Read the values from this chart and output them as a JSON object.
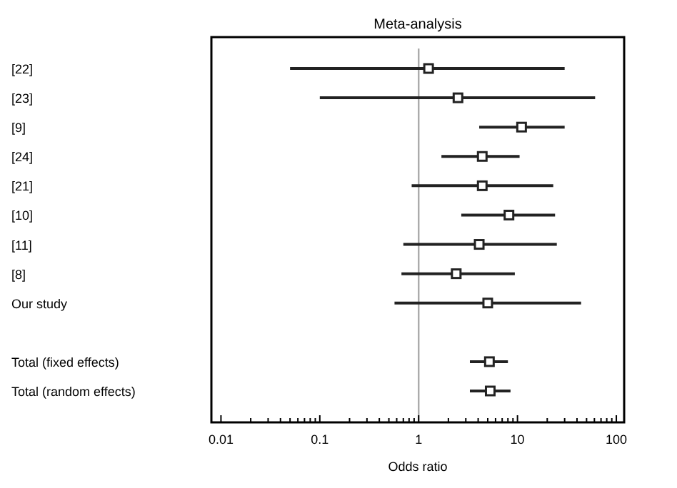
{
  "chart_data": {
    "type": "scatter",
    "title": "Meta-analysis",
    "xlabel": "Odds ratio",
    "log": "x",
    "marker": "square",
    "grid": false,
    "categories": [
      "[22]",
      "[23]",
      "[9]",
      "[24]",
      "[21]",
      "[10]",
      "[11]",
      "[8]",
      "Our study",
      null,
      "Total (fixed effects)",
      "Total (random effects)"
    ],
    "orientation": "horizontal",
    "values": [
      1.26,
      2.5,
      11,
      4.4,
      4.4,
      8.2,
      4.1,
      2.4,
      5,
      null,
      5.2,
      5.3
    ],
    "errors": [
      [
        0.05,
        30
      ],
      [
        0.1,
        61
      ],
      [
        4.1,
        30
      ],
      [
        1.7,
        10.5
      ],
      [
        0.85,
        23
      ],
      [
        2.7,
        24
      ],
      [
        0.7,
        25
      ],
      [
        0.67,
        9.4
      ],
      [
        0.57,
        44
      ],
      null,
      [
        3.3,
        8
      ],
      [
        3.3,
        8.5
      ]
    ],
    "color": "#222222",
    "xlim": [
      0.008,
      120
    ],
    "xticks": [
      0.01,
      {
        "value": 0.02,
        "label": null
      },
      {
        "value": 0.03,
        "label": null
      },
      {
        "value": 0.04,
        "label": null
      },
      {
        "value": 0.05,
        "label": null
      },
      {
        "value": 0.06,
        "label": null
      },
      {
        "value": 0.07,
        "label": null
      },
      {
        "value": 0.08,
        "label": null
      },
      {
        "value": 0.09,
        "label": null
      },
      0.1,
      {
        "value": 0.2,
        "label": null
      },
      {
        "value": 0.3,
        "label": null
      },
      {
        "value": 0.4,
        "label": null
      },
      {
        "value": 0.5,
        "label": null
      },
      {
        "value": 0.6,
        "label": null
      },
      {
        "value": 0.7,
        "label": null
      },
      {
        "value": 0.8,
        "label": null
      },
      {
        "value": 0.9,
        "label": null
      },
      1,
      {
        "value": 2,
        "label": null
      },
      {
        "value": 3,
        "label": null
      },
      {
        "value": 4,
        "label": null
      },
      {
        "value": 5,
        "label": null
      },
      {
        "value": 6,
        "label": null
      },
      {
        "value": 7,
        "label": null
      },
      {
        "value": 8,
        "label": null
      },
      {
        "value": 9,
        "label": null
      },
      10,
      {
        "value": 20,
        "label": null
      },
      {
        "value": 30,
        "label": null
      },
      {
        "value": 40,
        "label": null
      },
      {
        "value": 50,
        "label": null
      },
      {
        "value": 60,
        "label": null
      },
      {
        "value": 70,
        "label": null
      },
      {
        "value": 80,
        "label": null
      },
      {
        "value": 90,
        "label": null
      },
      100
    ],
    "ref_lines": [
      {
        "axis": "x",
        "value": 1,
        "color": "#aaaaaa"
      }
    ]
  }
}
